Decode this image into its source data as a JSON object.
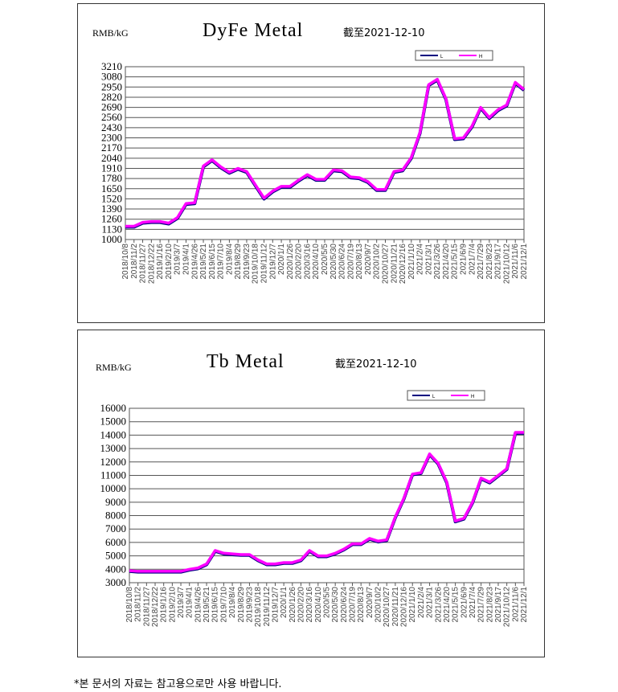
{
  "charts_common": {
    "dates": [
      "2018/10/8",
      "2018/11/2",
      "2018/11/27",
      "2018/12/22",
      "2019/1/16",
      "2019/2/10",
      "2019/3/7",
      "2019/4/1",
      "2019/4/26",
      "2019/5/21",
      "2019/6/15",
      "2019/7/10",
      "2019/8/4",
      "2019/8/29",
      "2019/9/23",
      "2019/10/18",
      "2019/11/12",
      "2019/12/7",
      "2020/1/1",
      "2020/1/26",
      "2020/2/20",
      "2020/3/16",
      "2020/4/10",
      "2020/5/5",
      "2020/5/30",
      "2020/6/24",
      "2020/7/19",
      "2020/8/13",
      "2020/9/7",
      "2020/10/2",
      "2020/10/27",
      "2020/11/21",
      "2020/12/16",
      "2021/1/10",
      "2021/2/4",
      "2021/3/1",
      "2021/3/26",
      "2021/4/20",
      "2021/5/15",
      "2021/6/9",
      "2021/7/4",
      "2021/7/29",
      "2021/8/23",
      "2021/9/17",
      "2021/10/12",
      "2021/11/6",
      "2021/12/1"
    ]
  },
  "chart_data": [
    {
      "type": "line",
      "title": "DyFe Metal",
      "subtitle": "截至2021-12-10",
      "ylabel": "RMB/kG",
      "ylim": [
        1000,
        3210
      ],
      "ystep": 130,
      "grid": true,
      "legend": "top-right",
      "series": [
        {
          "name": "L",
          "color": "#000080",
          "values": [
            1160,
            1160,
            1210,
            1220,
            1220,
            1200,
            1270,
            1450,
            1460,
            1930,
            2010,
            1920,
            1850,
            1900,
            1860,
            1690,
            1520,
            1610,
            1670,
            1670,
            1750,
            1820,
            1760,
            1760,
            1880,
            1870,
            1790,
            1780,
            1730,
            1630,
            1630,
            1860,
            1880,
            2040,
            2360,
            2970,
            3040,
            2790,
            2280,
            2290,
            2440,
            2680,
            2550,
            2650,
            2710,
            3000,
            2910
          ]
        },
        {
          "name": "H",
          "color": "#ff00ff",
          "values": [
            1170,
            1170,
            1220,
            1230,
            1230,
            1210,
            1280,
            1460,
            1470,
            1940,
            2020,
            1930,
            1860,
            1910,
            1870,
            1700,
            1530,
            1620,
            1680,
            1680,
            1760,
            1830,
            1770,
            1770,
            1890,
            1880,
            1800,
            1790,
            1740,
            1640,
            1640,
            1870,
            1890,
            2050,
            2370,
            2980,
            3050,
            2800,
            2290,
            2300,
            2450,
            2690,
            2560,
            2660,
            2720,
            3010,
            2920
          ]
        }
      ]
    },
    {
      "type": "line",
      "title": "Tb Metal",
      "subtitle": "截至2021-12-10",
      "ylabel": "RMB/kG",
      "ylim": [
        3000,
        16000
      ],
      "ystep": 1000,
      "grid": true,
      "legend": "top-right",
      "series": [
        {
          "name": "L",
          "color": "#000080",
          "values": [
            3850,
            3800,
            3800,
            3800,
            3800,
            3800,
            3800,
            3950,
            4050,
            4350,
            5350,
            5150,
            5100,
            5050,
            5050,
            4650,
            4350,
            4350,
            4450,
            4450,
            4650,
            5350,
            4950,
            4950,
            5150,
            5450,
            5850,
            5850,
            6250,
            6050,
            6150,
            7850,
            9250,
            11050,
            11150,
            12550,
            11850,
            10450,
            7550,
            7750,
            8950,
            10750,
            10450,
            10950,
            11450,
            14150,
            14150
          ]
        },
        {
          "name": "H",
          "color": "#ff00ff",
          "values": [
            3900,
            3850,
            3850,
            3850,
            3850,
            3850,
            3850,
            4000,
            4100,
            4400,
            5400,
            5200,
            5150,
            5100,
            5100,
            4700,
            4400,
            4400,
            4500,
            4500,
            4700,
            5400,
            5000,
            5000,
            5200,
            5500,
            5900,
            5900,
            6300,
            6100,
            6200,
            7900,
            9300,
            11100,
            11200,
            12600,
            11900,
            10500,
            7600,
            7800,
            9000,
            10800,
            10500,
            11000,
            11500,
            14200,
            14200
          ]
        }
      ]
    }
  ],
  "footer": "*본 문서의 자료는 참고용으로만 사용 바랍니다."
}
